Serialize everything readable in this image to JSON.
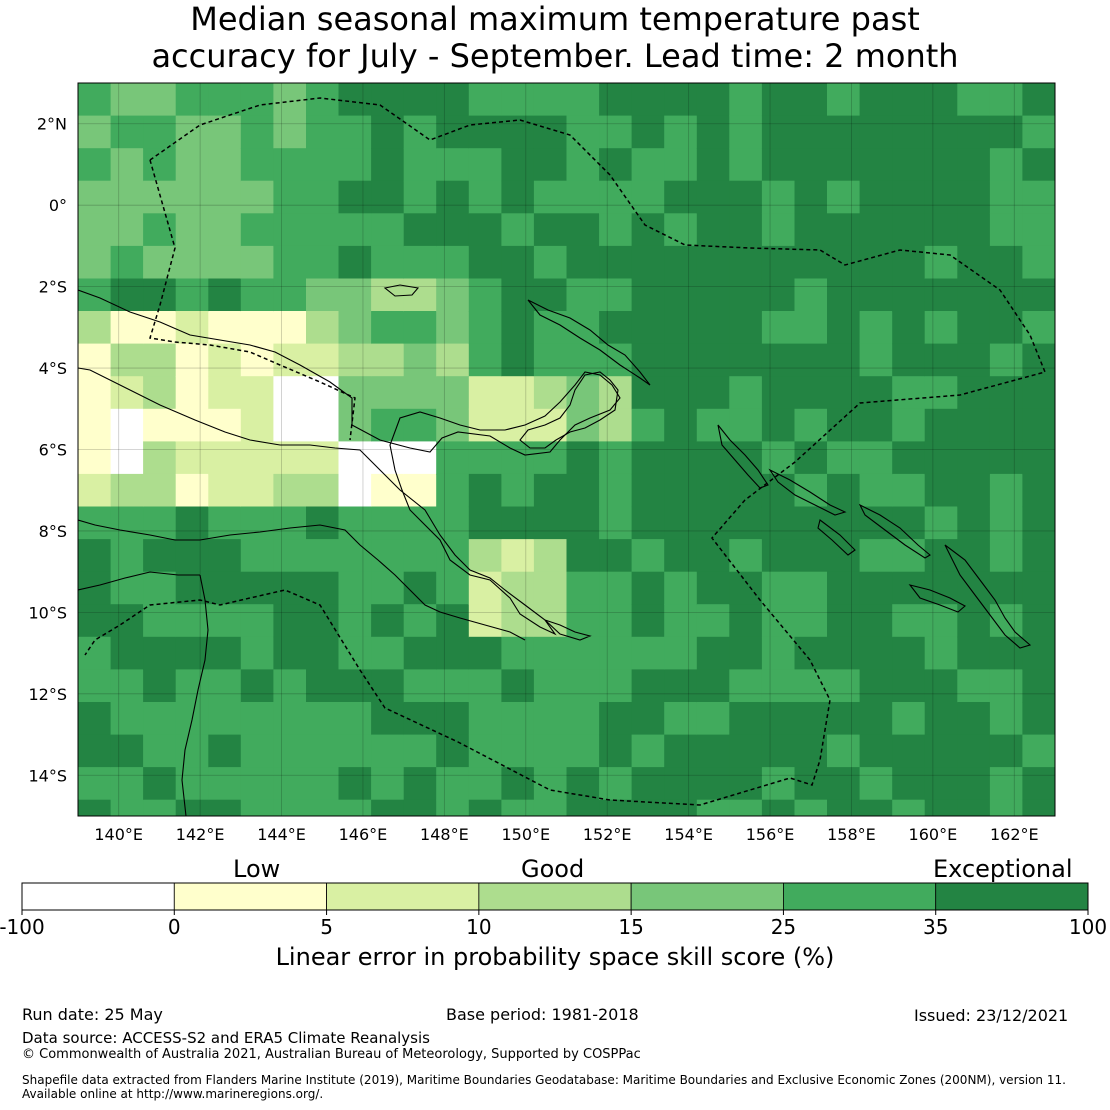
{
  "title": {
    "line1": "Median seasonal maximum temperature past",
    "line2": "accuracy for July - September. Lead time: 2 month"
  },
  "map": {
    "lat_labels": [
      "2°N",
      "0°",
      "2°S",
      "4°S",
      "6°S",
      "8°S",
      "10°S",
      "12°S",
      "14°S"
    ],
    "lon_labels": [
      "140°E",
      "142°E",
      "144°E",
      "146°E",
      "148°E",
      "150°E",
      "152°E",
      "154°E",
      "156°E",
      "158°E",
      "160°E",
      "162°E"
    ],
    "extent": {
      "lon": [
        139,
        163
      ],
      "lat": [
        -15,
        3
      ]
    },
    "grid": {
      "cell_deg": 0.8
    }
  },
  "colorbar": {
    "category_labels": [
      "Low",
      "Good",
      "Exceptional"
    ],
    "tick_labels": [
      "-100",
      "0",
      "5",
      "10",
      "15",
      "25",
      "35",
      "100"
    ],
    "colors": [
      "#ffffff",
      "#ffffcc",
      "#d9f0a3",
      "#addd8e",
      "#78c679",
      "#41ab5d",
      "#238443"
    ],
    "label": "Linear error in probability space skill score (%)"
  },
  "footer": {
    "run_date": "Run date: 25 May",
    "base_period": "Base period: 1981-2018",
    "issued": "Issued: 23/12/2021",
    "data_source": "Data source: ACCESS-S2 and ERA5 Climate Reanalysis",
    "copyright": "© Commonwealth of Australia 2021, Australian Bureau of Meteorology, Supported by COSPPac",
    "shapefile_line1": "Shapefile data extracted from Flanders Marine Institute (2019), Maritime Boundaries Geodatabase: Maritime Boundaries and Exclusive Economic Zones (200NM), version 11.",
    "shapefile_line2": "Available online at http://www.marineregions.org/."
  }
}
